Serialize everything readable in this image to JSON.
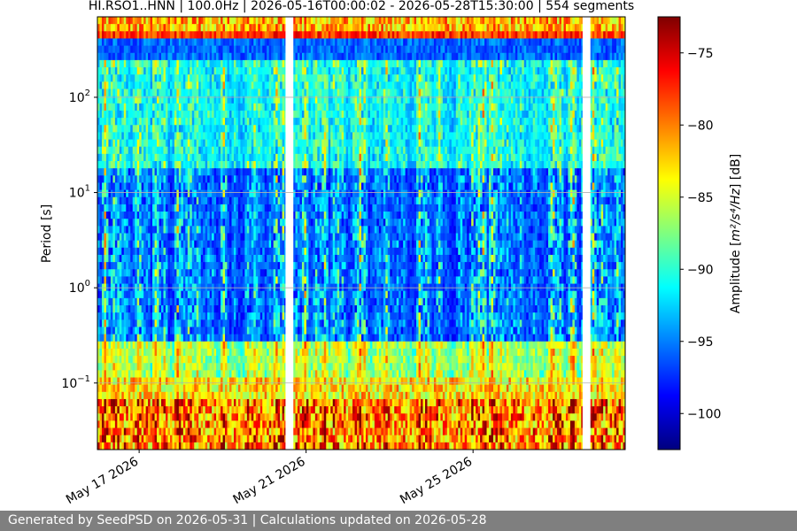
{
  "chart_data": {
    "type": "heatmap",
    "title": "HI.RSO1..HNN | 100.0Hz | 2026-05-16T00:00:02 - 2026-05-28T15:30:00 | 554 segments",
    "ylabel": "Period [s]",
    "y_scale": "log",
    "y_inverted": true,
    "ylim": [
      0.02,
      700
    ],
    "y_ticks": [
      {
        "value": 0.1,
        "base": "10",
        "exp": "−1"
      },
      {
        "value": 1,
        "base": "10",
        "exp": "0"
      },
      {
        "value": 10,
        "base": "10",
        "exp": "1"
      },
      {
        "value": 100,
        "base": "10",
        "exp": "2"
      }
    ],
    "x_type": "date",
    "xlim": [
      "2026-05-16T00:00:02",
      "2026-05-28T15:30:00"
    ],
    "x_ticks": [
      {
        "date": "2026-05-17",
        "label": "May 17 2026"
      },
      {
        "date": "2026-05-21",
        "label": "May 21 2026"
      },
      {
        "date": "2026-05-25",
        "label": "May 25 2026"
      }
    ],
    "grid": true,
    "colorbar": {
      "label_prefix": "Amplitude [",
      "label_math": "m²/s⁴/Hz",
      "label_suffix": "] [dB]",
      "range": [
        -102.5,
        -72.5
      ],
      "ticks": [
        -75,
        -80,
        -85,
        -90,
        -95,
        -100
      ],
      "colormap": [
        "#00007f",
        "#0000ff",
        "#007fff",
        "#00ffff",
        "#7fff7f",
        "#ffff00",
        "#ff7f00",
        "#ff0000",
        "#7f0000"
      ]
    },
    "gaps": [
      {
        "start": "2026-05-20T12:10:00",
        "end": "2026-05-20T16:40:00"
      },
      {
        "start": "2026-05-27T15:00:00",
        "end": "2026-05-27T19:30:00"
      }
    ],
    "segments": 554,
    "colors": {
      "grid": "#b0b0b0"
    }
  },
  "footer": {
    "text": "Generated by SeedPSD on 2026-05-31 | Calculations updated on 2026-05-28"
  }
}
